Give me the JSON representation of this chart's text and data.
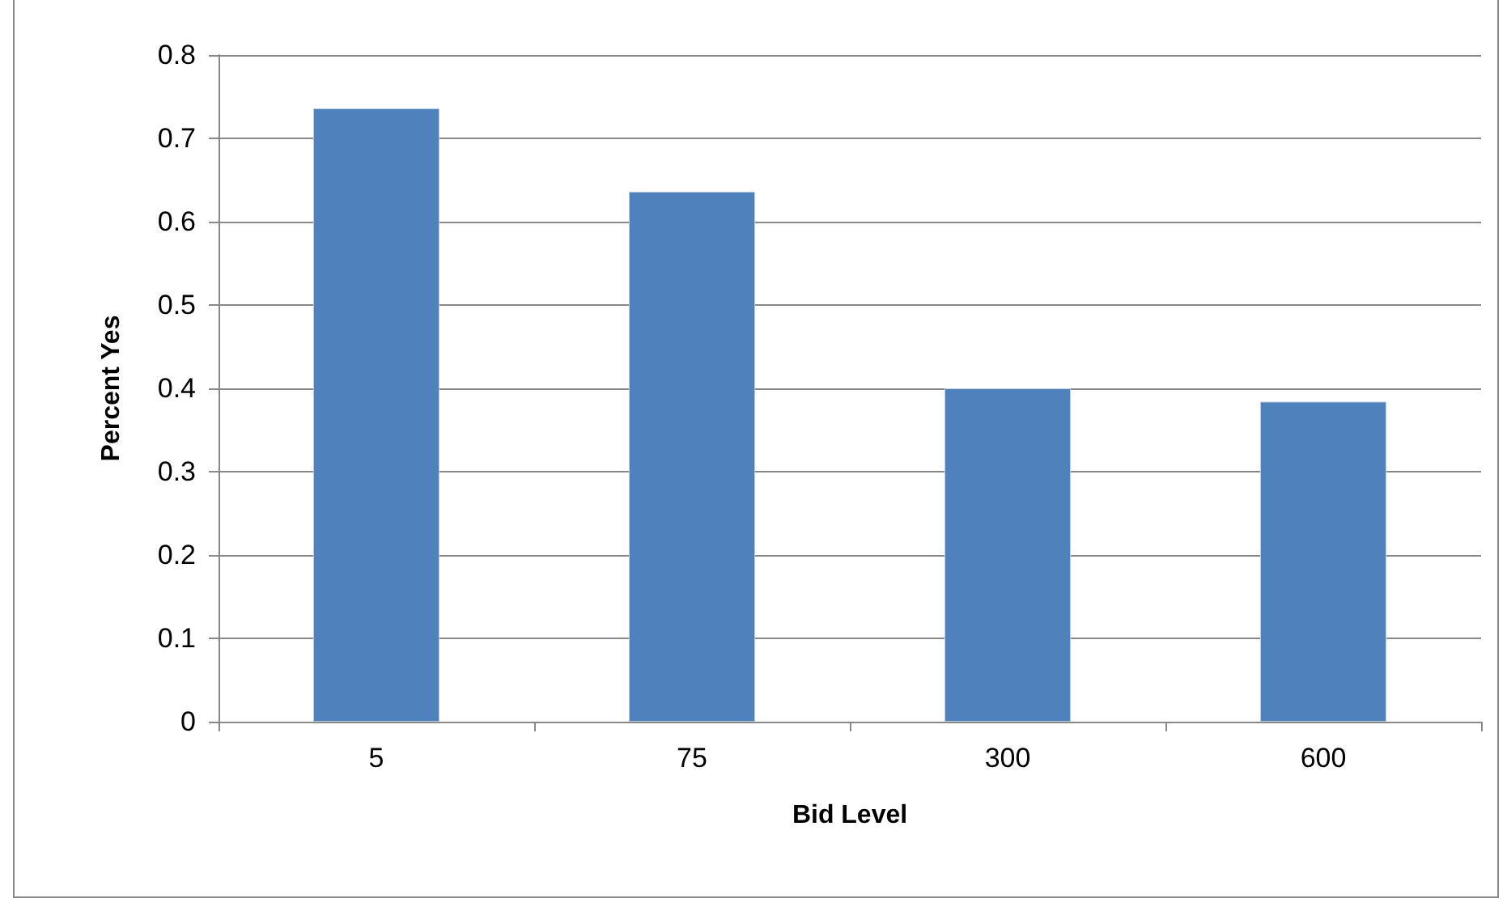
{
  "chart_data": {
    "type": "bar",
    "xlabel": "Bid Level",
    "ylabel": "Percent Yes",
    "categories": [
      "5",
      "75",
      "300",
      "600"
    ],
    "values": [
      0.736,
      0.636,
      0.4,
      0.384
    ],
    "color": "#4f81bd",
    "ylim": [
      0,
      0.8
    ],
    "yticks": [
      0,
      0.1,
      0.2,
      0.3,
      0.4,
      0.5,
      0.6,
      0.7,
      0.8
    ],
    "grid": "y"
  }
}
